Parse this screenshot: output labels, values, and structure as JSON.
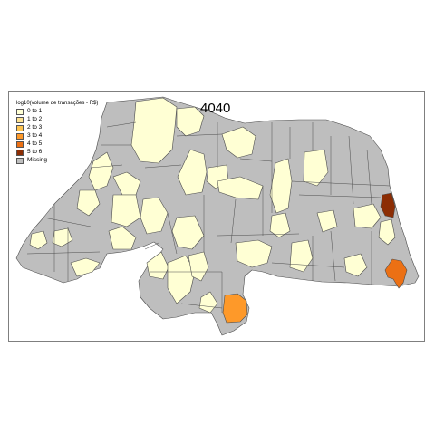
{
  "map": {
    "title": "4040",
    "legend": {
      "title": "log10(volume de transações - R$)",
      "items": [
        {
          "label": "0 to 1",
          "color": "#ffffd4"
        },
        {
          "label": "1 to 2",
          "color": "#fee391"
        },
        {
          "label": "2 to 3",
          "color": "#fec44f"
        },
        {
          "label": "3 to 4",
          "color": "#fe9929"
        },
        {
          "label": "4 to 5",
          "color": "#ec7014"
        },
        {
          "label": "5 to 6",
          "color": "#8c2d04"
        },
        {
          "label": "Missing",
          "color": "#bebebe"
        }
      ]
    },
    "colors": {
      "missing": "#bebebe",
      "class_0_1": "#ffffd4",
      "class_3_4": "#fe9929",
      "class_4_5": "#ec7014",
      "class_5_6": "#8c2d04",
      "border": "#4d4d4d",
      "frame": "#7f7f7f"
    }
  }
}
